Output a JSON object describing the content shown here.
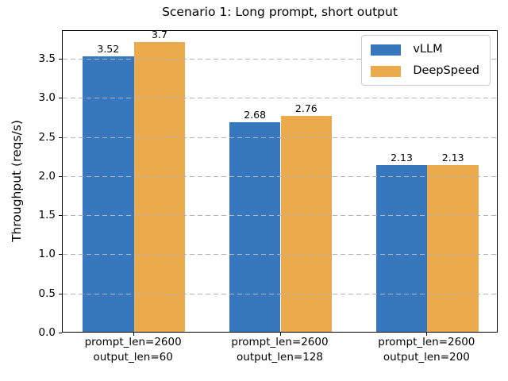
{
  "chart_data": {
    "type": "bar",
    "title": "Scenario 1: Long prompt, short output",
    "xlabel": "",
    "ylabel": "Throughput (reqs/s)",
    "categories": [
      [
        "prompt_len=2600",
        "output_len=60"
      ],
      [
        "prompt_len=2600",
        "output_len=128"
      ],
      [
        "prompt_len=2600",
        "output_len=200"
      ]
    ],
    "series": [
      {
        "name": "vLLM",
        "color": "#3777be",
        "values": [
          3.52,
          2.68,
          2.13
        ],
        "labels": [
          "3.52",
          "2.68",
          "2.13"
        ]
      },
      {
        "name": "DeepSpeed",
        "color": "#ebaa4b",
        "values": [
          3.7,
          2.76,
          2.13
        ],
        "labels": [
          "3.7",
          "2.76",
          "2.13"
        ]
      }
    ],
    "yticks": {
      "values": [
        0,
        0.5,
        1,
        1.5,
        2,
        2.5,
        3,
        3.5
      ],
      "labels": [
        "0.0",
        "0.5",
        "1.0",
        "1.5",
        "2.0",
        "2.5",
        "3.0",
        "3.5"
      ]
    },
    "ylim": [
      0,
      3.865
    ],
    "xlim": [
      -0.485,
      2.485
    ],
    "bar_width_fraction": 0.35,
    "grid": {
      "axis": "y",
      "style": "dashed",
      "color": "#b4b4b4"
    },
    "legend": {
      "position": "upper right",
      "entries": [
        "vLLM",
        "DeepSpeed"
      ]
    }
  }
}
